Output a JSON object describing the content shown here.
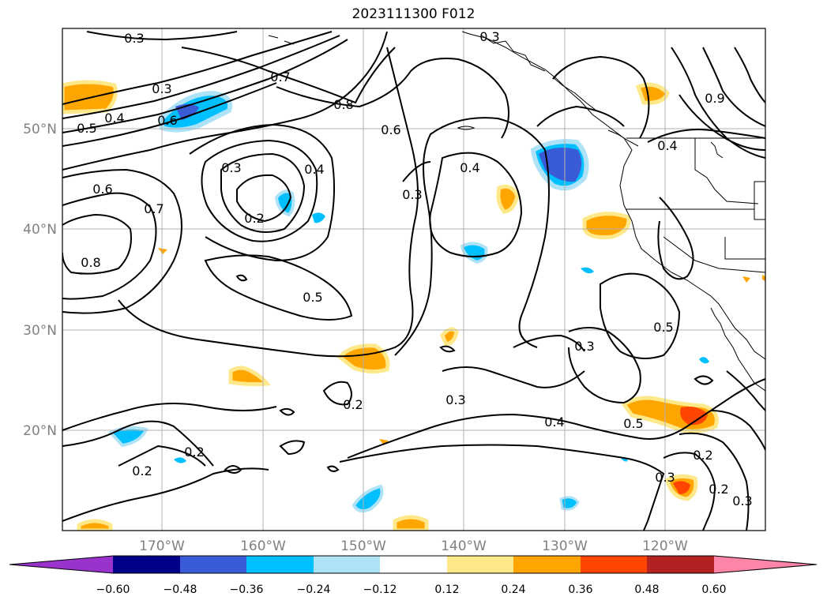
{
  "title": "2023111300 F012",
  "map": {
    "lat_labels": [
      "50°N",
      "40°N",
      "30°N",
      "20°N"
    ],
    "lon_labels": [
      "170°W",
      "160°W",
      "150°W",
      "140°W",
      "130°W",
      "120°W"
    ],
    "contour_labels": [
      "0.3",
      "0.3",
      "0.5",
      "0.4",
      "0.6",
      "0.7",
      "0.8",
      "0.6",
      "0.3",
      "0.4",
      "0.2",
      "0.6",
      "0.7",
      "0.8",
      "0.4",
      "0.3",
      "0.5",
      "0.3",
      "0.2",
      "0.2",
      "0.2",
      "0.3",
      "0.4",
      "0.5",
      "0.3",
      "0.5",
      "0.2",
      "0.2",
      "0.3",
      "0.3",
      "0.4",
      "0.9"
    ]
  },
  "colorbar": {
    "ticks": [
      "−0.60",
      "−0.48",
      "−0.36",
      "−0.24",
      "−0.12",
      "0.12",
      "0.24",
      "0.36",
      "0.48",
      "0.60"
    ],
    "colors": [
      "#9933cc",
      "#00008b",
      "#3a5bd6",
      "#00bfff",
      "#ade2f7",
      "#ffffff",
      "#ffe88a",
      "#ffa500",
      "#ff4500",
      "#b22222",
      "#ff85a8"
    ]
  }
}
